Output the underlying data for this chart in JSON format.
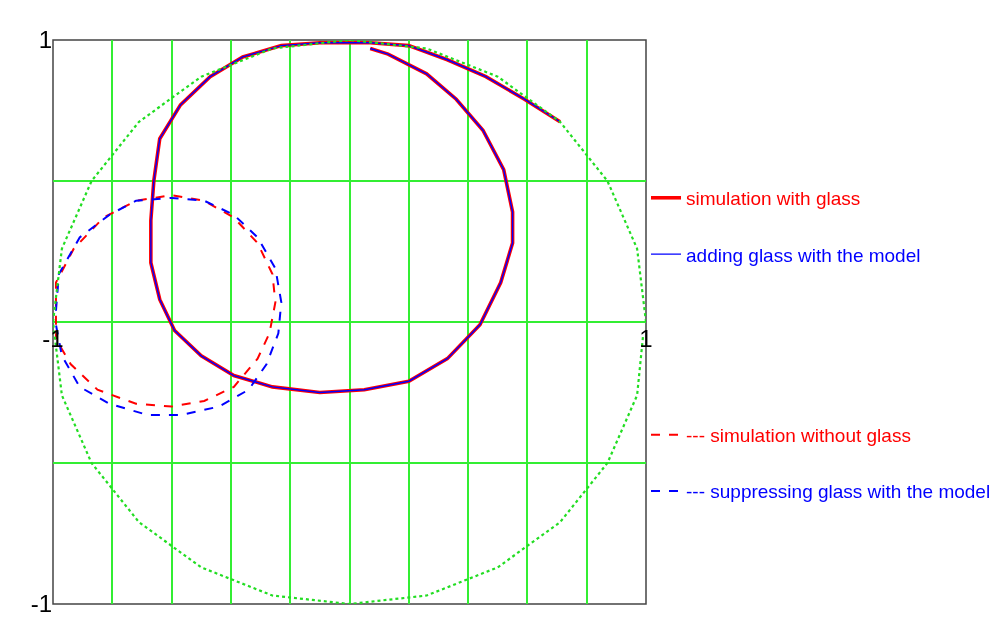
{
  "chart_data": {
    "type": "line",
    "xlim": [
      -1,
      1
    ],
    "ylim": [
      -1,
      1
    ],
    "xticks": [
      -1,
      {
        "value": -0.8,
        "label": null
      },
      {
        "value": -0.6,
        "label": null
      },
      {
        "value": -0.4,
        "label": null
      },
      {
        "value": -0.2,
        "label": null
      },
      {
        "value": 0,
        "label": null
      },
      {
        "value": 0.2,
        "label": null
      },
      {
        "value": 0.4,
        "label": null
      },
      {
        "value": 0.6,
        "label": null
      },
      {
        "value": 0.8,
        "label": null
      },
      1
    ],
    "yticks": [
      -1,
      {
        "value": -0.5,
        "label": null
      },
      {
        "value": 0,
        "label": null
      },
      {
        "value": 0.5,
        "label": null
      },
      1
    ],
    "grid": true,
    "legend": "right",
    "series": [
      {
        "name": "simulation with glass",
        "color": "#ff0000",
        "line_style": "solid",
        "x": [
          0.71,
          0.59,
          0.46,
          0.33,
          0.2,
          0.07,
          0.0,
          -0.1,
          -0.23,
          -0.36,
          -0.47,
          -0.57,
          -0.64,
          -0.66,
          -0.67,
          -0.67,
          -0.64,
          -0.59,
          -0.5,
          -0.39,
          -0.26,
          -0.1,
          0.05,
          0.2,
          0.33,
          0.44,
          0.51,
          0.55,
          0.55,
          0.52,
          0.45,
          0.36,
          0.26,
          0.13,
          0.07
        ],
        "values": [
          0.71,
          0.79,
          0.87,
          0.93,
          0.98,
          0.99,
          0.99,
          0.99,
          0.98,
          0.94,
          0.87,
          0.77,
          0.65,
          0.5,
          0.36,
          0.21,
          0.08,
          -0.03,
          -0.12,
          -0.19,
          -0.23,
          -0.25,
          -0.24,
          -0.21,
          -0.13,
          -0.01,
          0.14,
          0.28,
          0.39,
          0.54,
          0.68,
          0.79,
          0.88,
          0.95,
          0.97
        ]
      },
      {
        "name": "adding glass with the model",
        "color": "#0000ff",
        "line_style": "solid",
        "x": [
          0.71,
          0.59,
          0.46,
          0.33,
          0.2,
          0.07,
          0.0,
          -0.1,
          -0.23,
          -0.36,
          -0.47,
          -0.57,
          -0.64,
          -0.66,
          -0.67,
          -0.67,
          -0.64,
          -0.59,
          -0.5,
          -0.39,
          -0.26,
          -0.1,
          0.05,
          0.2,
          0.33,
          0.44,
          0.51,
          0.55,
          0.55,
          0.52,
          0.45,
          0.36,
          0.26,
          0.13,
          0.07
        ],
        "values": [
          0.71,
          0.79,
          0.87,
          0.93,
          0.98,
          0.99,
          0.99,
          0.99,
          0.98,
          0.94,
          0.87,
          0.77,
          0.65,
          0.5,
          0.36,
          0.21,
          0.08,
          -0.03,
          -0.12,
          -0.19,
          -0.23,
          -0.25,
          -0.24,
          -0.21,
          -0.13,
          -0.01,
          0.14,
          0.28,
          0.39,
          0.54,
          0.68,
          0.79,
          0.88,
          0.95,
          0.97
        ]
      },
      {
        "name": "--- simulation without glass",
        "color": "#ff0000",
        "line_style": "dashed",
        "x": [
          -0.99,
          -0.99,
          -0.93,
          -0.83,
          -0.72,
          -0.6,
          -0.49,
          -0.39,
          -0.31,
          -0.26,
          -0.25,
          -0.27,
          -0.31,
          -0.39,
          -0.49,
          -0.6,
          -0.72,
          -0.85,
          -0.94,
          -0.99,
          -0.99
        ],
        "values": [
          -0.01,
          0.14,
          0.26,
          0.37,
          0.43,
          0.45,
          0.43,
          0.37,
          0.28,
          0.17,
          0.07,
          -0.04,
          -0.13,
          -0.23,
          -0.28,
          -0.3,
          -0.29,
          -0.24,
          -0.15,
          -0.06,
          -0.03
        ]
      },
      {
        "name": "--- suppressing glass with the model",
        "color": "#0000ff",
        "line_style": "dashed",
        "x": [
          -0.99,
          -0.98,
          -0.91,
          -0.81,
          -0.72,
          -0.6,
          -0.49,
          -0.39,
          -0.31,
          -0.25,
          -0.23,
          -0.24,
          -0.28,
          -0.34,
          -0.44,
          -0.57,
          -0.68,
          -0.81,
          -0.91,
          -0.97,
          -0.99
        ],
        "values": [
          0.04,
          0.17,
          0.3,
          0.38,
          0.43,
          0.44,
          0.43,
          0.38,
          0.3,
          0.19,
          0.07,
          -0.04,
          -0.15,
          -0.24,
          -0.3,
          -0.33,
          -0.33,
          -0.29,
          -0.23,
          -0.12,
          -0.01
        ]
      },
      {
        "color": "#22dd22",
        "line_style": "dotted",
        "x": [
          1.0,
          0.97,
          0.87,
          0.71,
          0.5,
          0.26,
          0.0,
          -0.26,
          -0.5,
          -0.71,
          -0.87,
          -0.97,
          -1.0,
          -0.97,
          -0.87,
          -0.71,
          -0.5,
          -0.26,
          0.0,
          0.26,
          0.5,
          0.71,
          0.87,
          0.97,
          0.99
        ],
        "values": [
          0.0,
          0.26,
          0.5,
          0.71,
          0.87,
          0.97,
          1.0,
          0.97,
          0.87,
          0.71,
          0.5,
          0.26,
          0.0,
          -0.26,
          -0.5,
          -0.71,
          -0.87,
          -0.97,
          -1.0,
          -0.97,
          -0.87,
          -0.71,
          -0.5,
          -0.26,
          -0.05
        ]
      }
    ]
  }
}
